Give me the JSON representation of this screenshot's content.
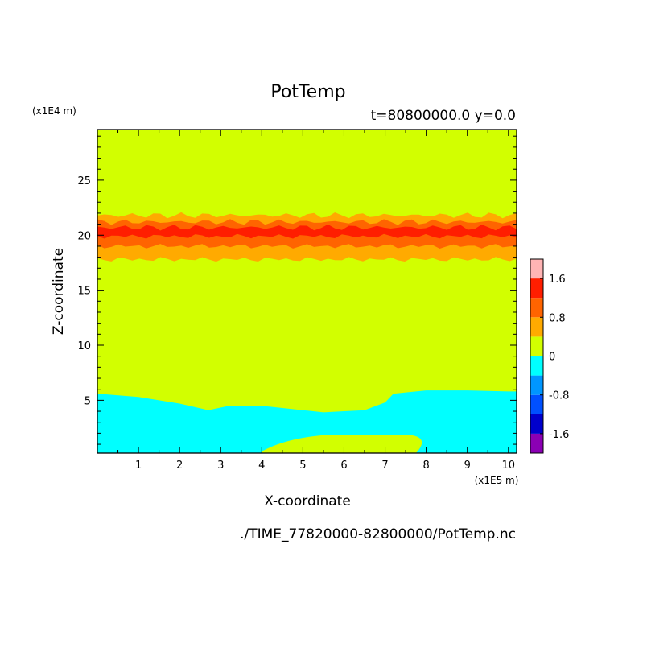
{
  "chart_data": {
    "type": "contour",
    "title": "PotTemp",
    "subtitle": "t=80800000.0 y=0.0",
    "xlabel": "X-coordinate",
    "ylabel": "Z-coordinate",
    "x_units": "(x1E5 m)",
    "y_units": "(x1E4 m)",
    "xlim": [
      0,
      10.2
    ],
    "ylim": [
      0.2,
      29.6
    ],
    "x_ticks": [
      "1",
      "2",
      "3",
      "4",
      "5",
      "6",
      "7",
      "8",
      "9",
      "10"
    ],
    "x_tick_values": [
      1,
      2,
      3,
      4,
      5,
      6,
      7,
      8,
      9,
      10
    ],
    "y_ticks": [
      "5",
      "10",
      "15",
      "20",
      "25"
    ],
    "y_tick_values": [
      5,
      10,
      15,
      20,
      25
    ],
    "footer": "./TIME_77820000-82800000/PotTemp.nc",
    "colorbar": {
      "levels": [
        -2,
        -1.6,
        -1.2,
        -0.8,
        -0.4,
        0,
        0.4,
        0.8,
        1.2,
        1.6,
        2.0
      ],
      "colors": [
        "#8b00b4",
        "#0000cc",
        "#0050ff",
        "#0096ff",
        "#00ffff",
        "#d2ff00",
        "#ffaa00",
        "#ff6400",
        "#ff1e00",
        "#ffb4b4"
      ],
      "labels": [
        "1.6",
        "0.8",
        "0",
        "-0.8",
        "-1.6"
      ],
      "label_values": [
        1.6,
        0.8,
        0,
        -0.8,
        -1.6
      ]
    },
    "regions": [
      {
        "name": "background",
        "level": "0 to 0.4",
        "color": "#d2ff00"
      },
      {
        "name": "lower-cold-layer",
        "level": "-0.4 to 0",
        "color": "#00ffff",
        "top_x": [
          0,
          1,
          2,
          2.7,
          3.2,
          4,
          5,
          5.5,
          6,
          6.5,
          7,
          7.2,
          8,
          9,
          10,
          10.2
        ],
        "top_z": [
          5.6,
          5.3,
          4.7,
          4.1,
          4.5,
          4.5,
          4.1,
          3.9,
          4.0,
          4.1,
          4.8,
          5.6,
          5.9,
          5.9,
          5.8,
          5.8
        ]
      },
      {
        "name": "bottom-warm-patch",
        "level": "0 to 0.4",
        "color": "#d2ff00",
        "x": [
          0.05,
          0.5,
          1.5,
          2.8,
          3.0,
          3.5,
          4.0,
          5.8,
          7.0,
          7.6,
          8.0,
          8.4,
          10.2
        ],
        "z": [
          0.2,
          0.2,
          0.2,
          0.2,
          0.2,
          0.2,
          0.2,
          1.9,
          1.9,
          1.8,
          1.2,
          0.2,
          0.2
        ]
      },
      {
        "name": "warm-band-outer",
        "level": "0.4 to 0.8",
        "color": "#ffaa00",
        "z_range": [
          17.8,
          21.8
        ]
      },
      {
        "name": "warm-band-mid",
        "level": "0.8 to 1.2",
        "color": "#ff6400",
        "z_range": [
          19.0,
          21.2
        ]
      },
      {
        "name": "warm-band-core",
        "level": "1.2 to 1.6",
        "color": "#ff1e00",
        "z_range": [
          19.9,
          20.7
        ]
      }
    ]
  }
}
